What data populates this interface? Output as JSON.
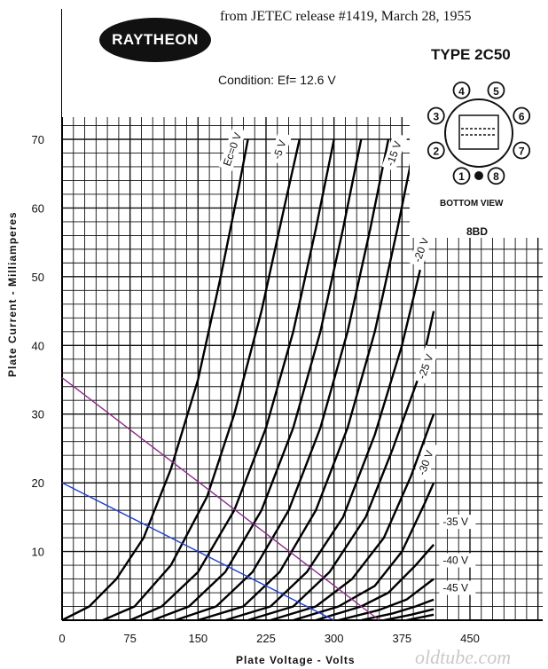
{
  "header": {
    "source_note": "from JETEC release #1419, March 28, 1955",
    "brand": "RAYTHEON",
    "condition": "Condition:  Ef= 12.6 V",
    "tube_type": "TYPE  2C50",
    "basing_view": "BOTTOM VIEW",
    "base_code": "8BD",
    "pins": [
      "1",
      "2",
      "3",
      "4",
      "5",
      "6",
      "7",
      "8"
    ]
  },
  "watermark": "oldtube.com",
  "colors": {
    "grid": "#111111",
    "curves": "#000000",
    "load_line_1": "#8b2a8b",
    "load_line_2": "#1f3fd6"
  },
  "chart_data": {
    "type": "line",
    "title": "",
    "xlabel": "Plate Voltage - Volts",
    "ylabel": "Plate Current - Milliamperes",
    "xlim": [
      0,
      500
    ],
    "ylim": [
      0,
      70
    ],
    "x_ticks": [
      "0",
      "75",
      "150",
      "225",
      "300",
      "375",
      "450"
    ],
    "y_ticks": [
      "10",
      "20",
      "30",
      "40",
      "50",
      "60",
      "70"
    ],
    "grid": true,
    "series": [
      {
        "name": "Ec=0 V",
        "points": [
          [
            0,
            0
          ],
          [
            30,
            2
          ],
          [
            60,
            6
          ],
          [
            90,
            12
          ],
          [
            120,
            22
          ],
          [
            150,
            35
          ],
          [
            175,
            50
          ],
          [
            195,
            63
          ],
          [
            205,
            70
          ]
        ]
      },
      {
        "name": "-5 V",
        "points": [
          [
            45,
            0
          ],
          [
            80,
            2
          ],
          [
            120,
            8
          ],
          [
            160,
            18
          ],
          [
            190,
            30
          ],
          [
            220,
            45
          ],
          [
            245,
            60
          ],
          [
            262,
            70
          ]
        ]
      },
      {
        "name": "",
        "points": [
          [
            75,
            0
          ],
          [
            110,
            2
          ],
          [
            150,
            7
          ],
          [
            190,
            16
          ],
          [
            225,
            28
          ],
          [
            255,
            42
          ],
          [
            280,
            57
          ],
          [
            300,
            70
          ]
        ]
      },
      {
        "name": "",
        "points": [
          [
            100,
            0
          ],
          [
            140,
            2
          ],
          [
            180,
            7
          ],
          [
            220,
            16
          ],
          [
            255,
            28
          ],
          [
            285,
            42
          ],
          [
            310,
            57
          ],
          [
            330,
            70
          ]
        ]
      },
      {
        "name": "",
        "points": [
          [
            125,
            0
          ],
          [
            170,
            2
          ],
          [
            210,
            7
          ],
          [
            250,
            16
          ],
          [
            285,
            28
          ],
          [
            315,
            42
          ],
          [
            340,
            57
          ],
          [
            360,
            70
          ]
        ]
      },
      {
        "name": "-15 V",
        "points": [
          [
            150,
            0
          ],
          [
            200,
            2
          ],
          [
            240,
            7
          ],
          [
            280,
            16
          ],
          [
            315,
            28
          ],
          [
            345,
            42
          ],
          [
            370,
            57
          ],
          [
            390,
            70
          ]
        ]
      },
      {
        "name": "",
        "points": [
          [
            180,
            0
          ],
          [
            230,
            2
          ],
          [
            270,
            7
          ],
          [
            310,
            15
          ],
          [
            345,
            27
          ],
          [
            375,
            40
          ],
          [
            395,
            51
          ]
        ]
      },
      {
        "name": "-20 V",
        "points": [
          [
            205,
            0
          ],
          [
            255,
            2
          ],
          [
            295,
            7
          ],
          [
            335,
            15
          ],
          [
            365,
            25
          ],
          [
            395,
            36
          ],
          [
            410,
            45
          ]
        ]
      },
      {
        "name": "",
        "points": [
          [
            230,
            0
          ],
          [
            280,
            2
          ],
          [
            320,
            6
          ],
          [
            355,
            12
          ],
          [
            385,
            21
          ],
          [
            410,
            30
          ]
        ]
      },
      {
        "name": "-25 V",
        "points": [
          [
            255,
            0
          ],
          [
            305,
            2
          ],
          [
            345,
            5
          ],
          [
            375,
            10
          ],
          [
            400,
            17
          ],
          [
            410,
            20
          ]
        ]
      },
      {
        "name": "",
        "points": [
          [
            280,
            0
          ],
          [
            330,
            2
          ],
          [
            360,
            4
          ],
          [
            390,
            8
          ],
          [
            410,
            11
          ]
        ]
      },
      {
        "name": "-30 V",
        "points": [
          [
            305,
            0
          ],
          [
            350,
            1.5
          ],
          [
            380,
            3
          ],
          [
            410,
            6
          ]
        ]
      },
      {
        "name": "-35 V",
        "points": [
          [
            330,
            0
          ],
          [
            365,
            1
          ],
          [
            390,
            2
          ],
          [
            410,
            3
          ]
        ]
      },
      {
        "name": "-40 V",
        "points": [
          [
            355,
            0
          ],
          [
            385,
            0.8
          ],
          [
            410,
            1.6
          ]
        ]
      },
      {
        "name": "-45 V",
        "points": [
          [
            380,
            0
          ],
          [
            410,
            0.8
          ]
        ]
      }
    ],
    "load_lines": [
      {
        "points": [
          [
            0,
            35.3
          ],
          [
            350,
            0
          ]
        ]
      },
      {
        "points": [
          [
            0,
            20
          ],
          [
            300,
            0
          ]
        ]
      }
    ],
    "curve_labels": [
      "Ec=0 V",
      "-5 V",
      "-15 V",
      "-20 V",
      "-25 V",
      "-30 V",
      "-35 V",
      "-40 V",
      "-45 V"
    ]
  }
}
